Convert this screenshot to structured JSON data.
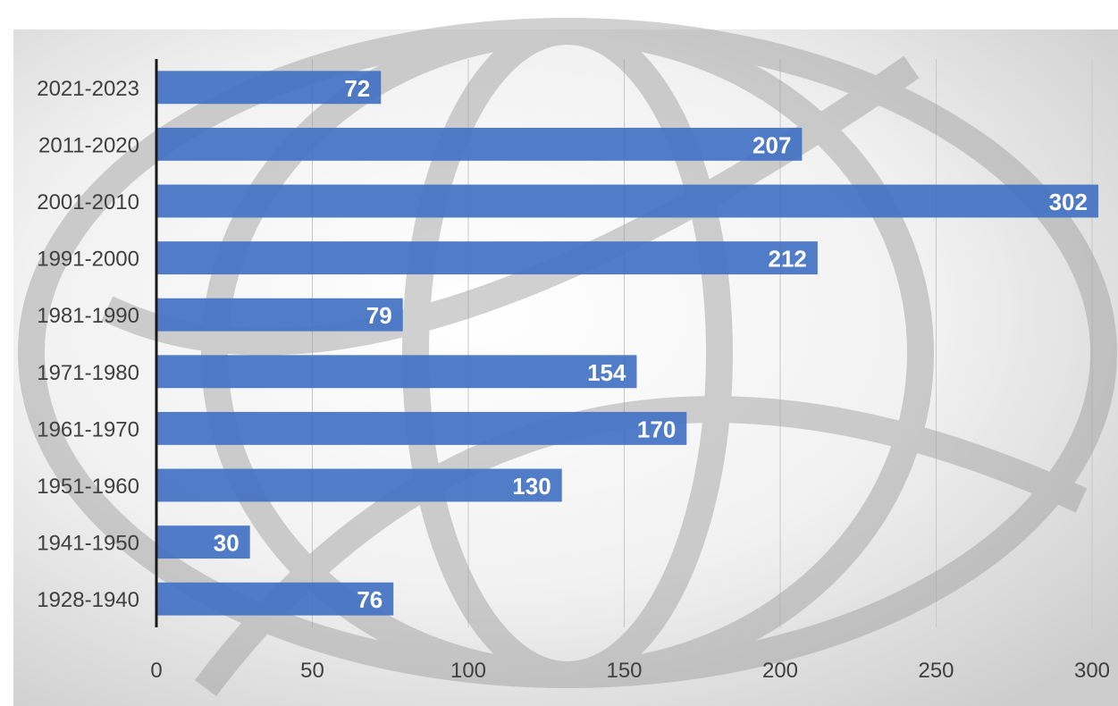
{
  "chart_data": {
    "type": "bar",
    "orientation": "horizontal",
    "categories": [
      "1928-1940",
      "1941-1950",
      "1951-1960",
      "1961-1970",
      "1971-1980",
      "1981-1990",
      "1991-2000",
      "2001-2010",
      "2011-2020",
      "2021-2023"
    ],
    "values": [
      76,
      30,
      130,
      170,
      154,
      79,
      212,
      302,
      207,
      72
    ],
    "x_ticks": [
      "0",
      "50",
      "100",
      "150",
      "200",
      "250",
      "300"
    ],
    "xlim": [
      0,
      300
    ],
    "title": "",
    "xlabel": "",
    "ylabel": "",
    "grid": "vertical",
    "legend": "none",
    "colors": {
      "bar": "#4472C4",
      "label": "#ffffff",
      "axis_text": "#404040",
      "gridline": "#c8c8c8",
      "axis_line": "#1a1a1a",
      "watermark": "#9a9a9a"
    }
  }
}
